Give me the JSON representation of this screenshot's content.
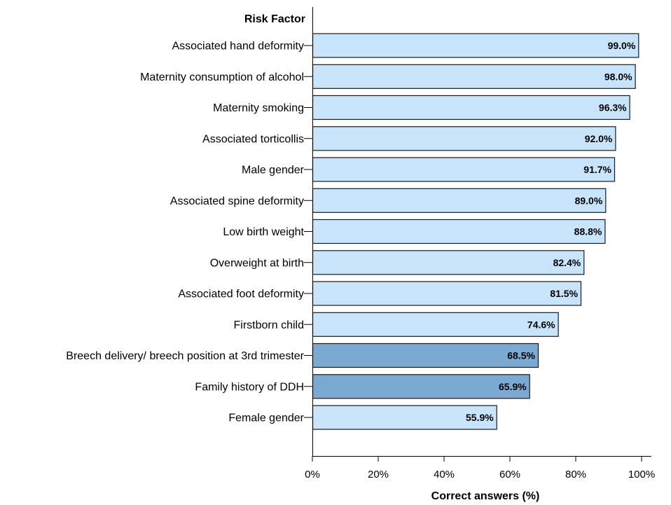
{
  "chart_data": {
    "type": "bar",
    "orientation": "horizontal",
    "category_axis_title": "Risk Factor",
    "xlabel": "Correct answers (%)",
    "xlim": [
      0,
      100
    ],
    "xticks": [
      "0%",
      "20%",
      "40%",
      "60%",
      "80%",
      "100%"
    ],
    "categories": [
      "Associated hand deformity",
      "Maternity consumption of alcohol",
      "Maternity smoking",
      "Associated torticollis",
      "Male gender",
      "Associated spine deformity",
      "Low birth weight",
      "Overweight at birth",
      "Associated foot deformity",
      "Firstborn child",
      "Breech delivery/ breech position at 3rd trimester",
      "Family history of DDH",
      "Female gender"
    ],
    "values": [
      99.0,
      98.0,
      96.3,
      92.0,
      91.7,
      89.0,
      88.8,
      82.4,
      81.5,
      74.6,
      68.5,
      65.9,
      55.9
    ],
    "data_labels": [
      "99.0%",
      "98.0%",
      "96.3%",
      "92.0%",
      "91.7%",
      "89.0%",
      "88.8%",
      "82.4%",
      "81.5%",
      "74.6%",
      "68.5%",
      "65.9%",
      "55.9%"
    ],
    "highlighted": [
      false,
      false,
      false,
      false,
      false,
      false,
      false,
      false,
      false,
      false,
      true,
      true,
      false
    ],
    "colors": {
      "bar": "#c7e4fb",
      "bar_highlight": "#7aa9d2",
      "bar_stroke": "#1a1a1a",
      "axis": "#000000"
    },
    "grid": false,
    "legend": "none"
  }
}
